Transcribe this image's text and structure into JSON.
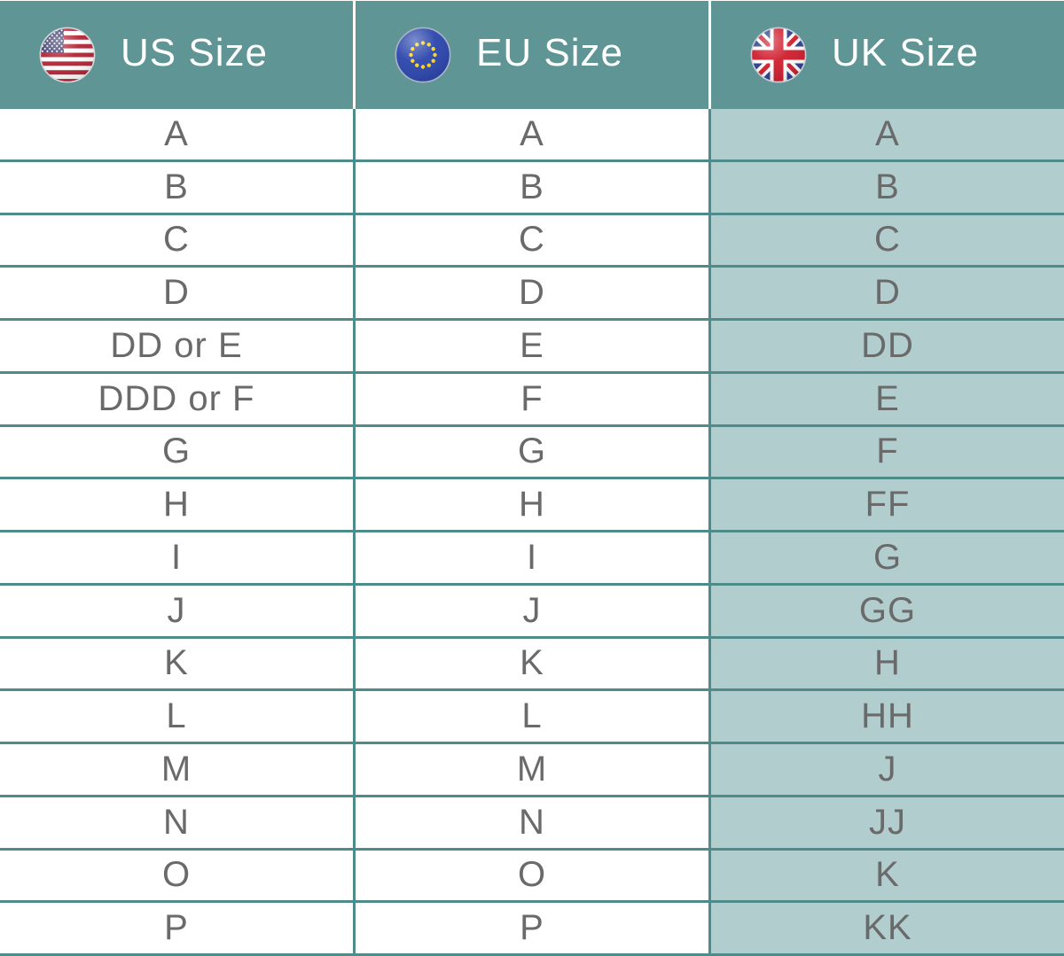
{
  "header": {
    "columns": [
      {
        "id": "us",
        "label": "US Size",
        "flag_icon": "us-flag-icon"
      },
      {
        "id": "eu",
        "label": "EU Size",
        "flag_icon": "eu-flag-icon"
      },
      {
        "id": "uk",
        "label": "UK Size",
        "flag_icon": "uk-flag-icon"
      }
    ]
  },
  "colors": {
    "header_teal": "#609596",
    "grid_line_teal": "#4e8c8c",
    "uk_column_sage": "#b1cdcd",
    "cell_white": "#ffffff",
    "header_text": "#ffffff",
    "body_text": "#6a6a6a"
  },
  "chart_data": {
    "type": "table",
    "columns": [
      "US Size",
      "EU Size",
      "UK Size"
    ],
    "rows": [
      [
        "A",
        "A",
        "A"
      ],
      [
        "B",
        "B",
        "B"
      ],
      [
        "C",
        "C",
        "C"
      ],
      [
        "D",
        "D",
        "D"
      ],
      [
        "DD or E",
        "E",
        "DD"
      ],
      [
        "DDD or F",
        "F",
        "E"
      ],
      [
        "G",
        "G",
        "F"
      ],
      [
        "H",
        "H",
        "FF"
      ],
      [
        "I",
        "I",
        "G"
      ],
      [
        "J",
        "J",
        "GG"
      ],
      [
        "K",
        "K",
        "H"
      ],
      [
        "L",
        "L",
        "HH"
      ],
      [
        "M",
        "M",
        "J"
      ],
      [
        "N",
        "N",
        "JJ"
      ],
      [
        "O",
        "O",
        "K"
      ],
      [
        "P",
        "P",
        "KK"
      ]
    ],
    "layout": {
      "header_position": "top",
      "uk_column_highlighted": true
    }
  }
}
